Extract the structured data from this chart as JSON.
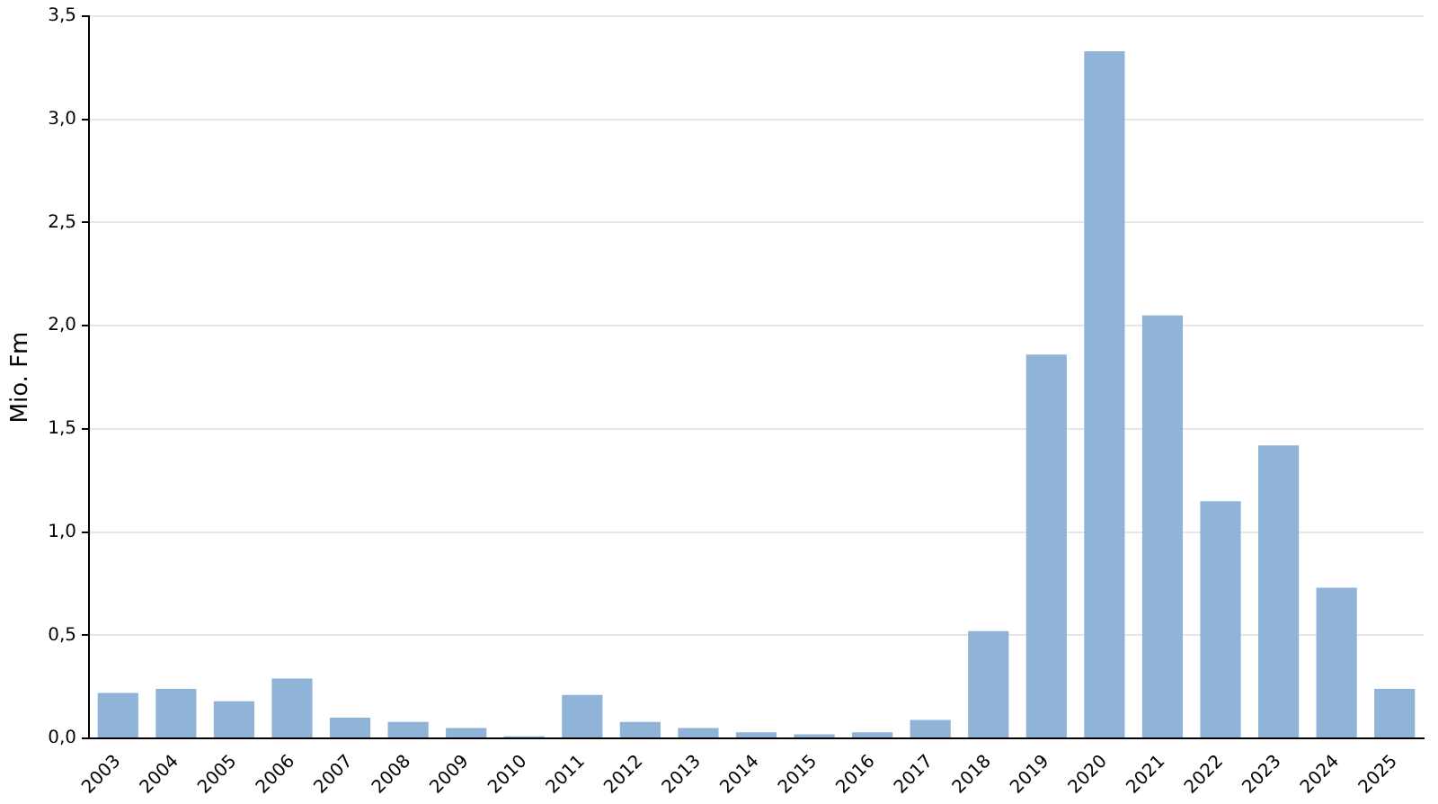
{
  "chart_data": {
    "type": "bar",
    "ylabel": "Mio. Fm",
    "categories": [
      "2003",
      "2004",
      "2005",
      "2006",
      "2007",
      "2008",
      "2009",
      "2010",
      "2011",
      "2012",
      "2013",
      "2014",
      "2015",
      "2016",
      "2017",
      "2018",
      "2019",
      "2020",
      "2021",
      "2022",
      "2023",
      "2024",
      "2025"
    ],
    "values": [
      0.22,
      0.24,
      0.18,
      0.29,
      0.1,
      0.08,
      0.05,
      0.01,
      0.21,
      0.08,
      0.05,
      0.03,
      0.02,
      0.03,
      0.09,
      0.52,
      1.86,
      3.33,
      2.05,
      1.15,
      1.42,
      0.73,
      0.24
    ],
    "color": "#8fb4d8",
    "ylim": [
      0,
      3.5
    ],
    "yticks": [
      {
        "value": 0,
        "label": "0,0"
      },
      {
        "value": 0.5,
        "label": "0,5"
      },
      {
        "value": 1,
        "label": "1,0"
      },
      {
        "value": 1.5,
        "label": "1,5"
      },
      {
        "value": 2,
        "label": "2,0"
      },
      {
        "value": 2.5,
        "label": "2,5"
      },
      {
        "value": 3,
        "label": "3,0"
      },
      {
        "value": 3.5,
        "label": "3,5"
      }
    ],
    "grid": "y",
    "legend": false
  }
}
